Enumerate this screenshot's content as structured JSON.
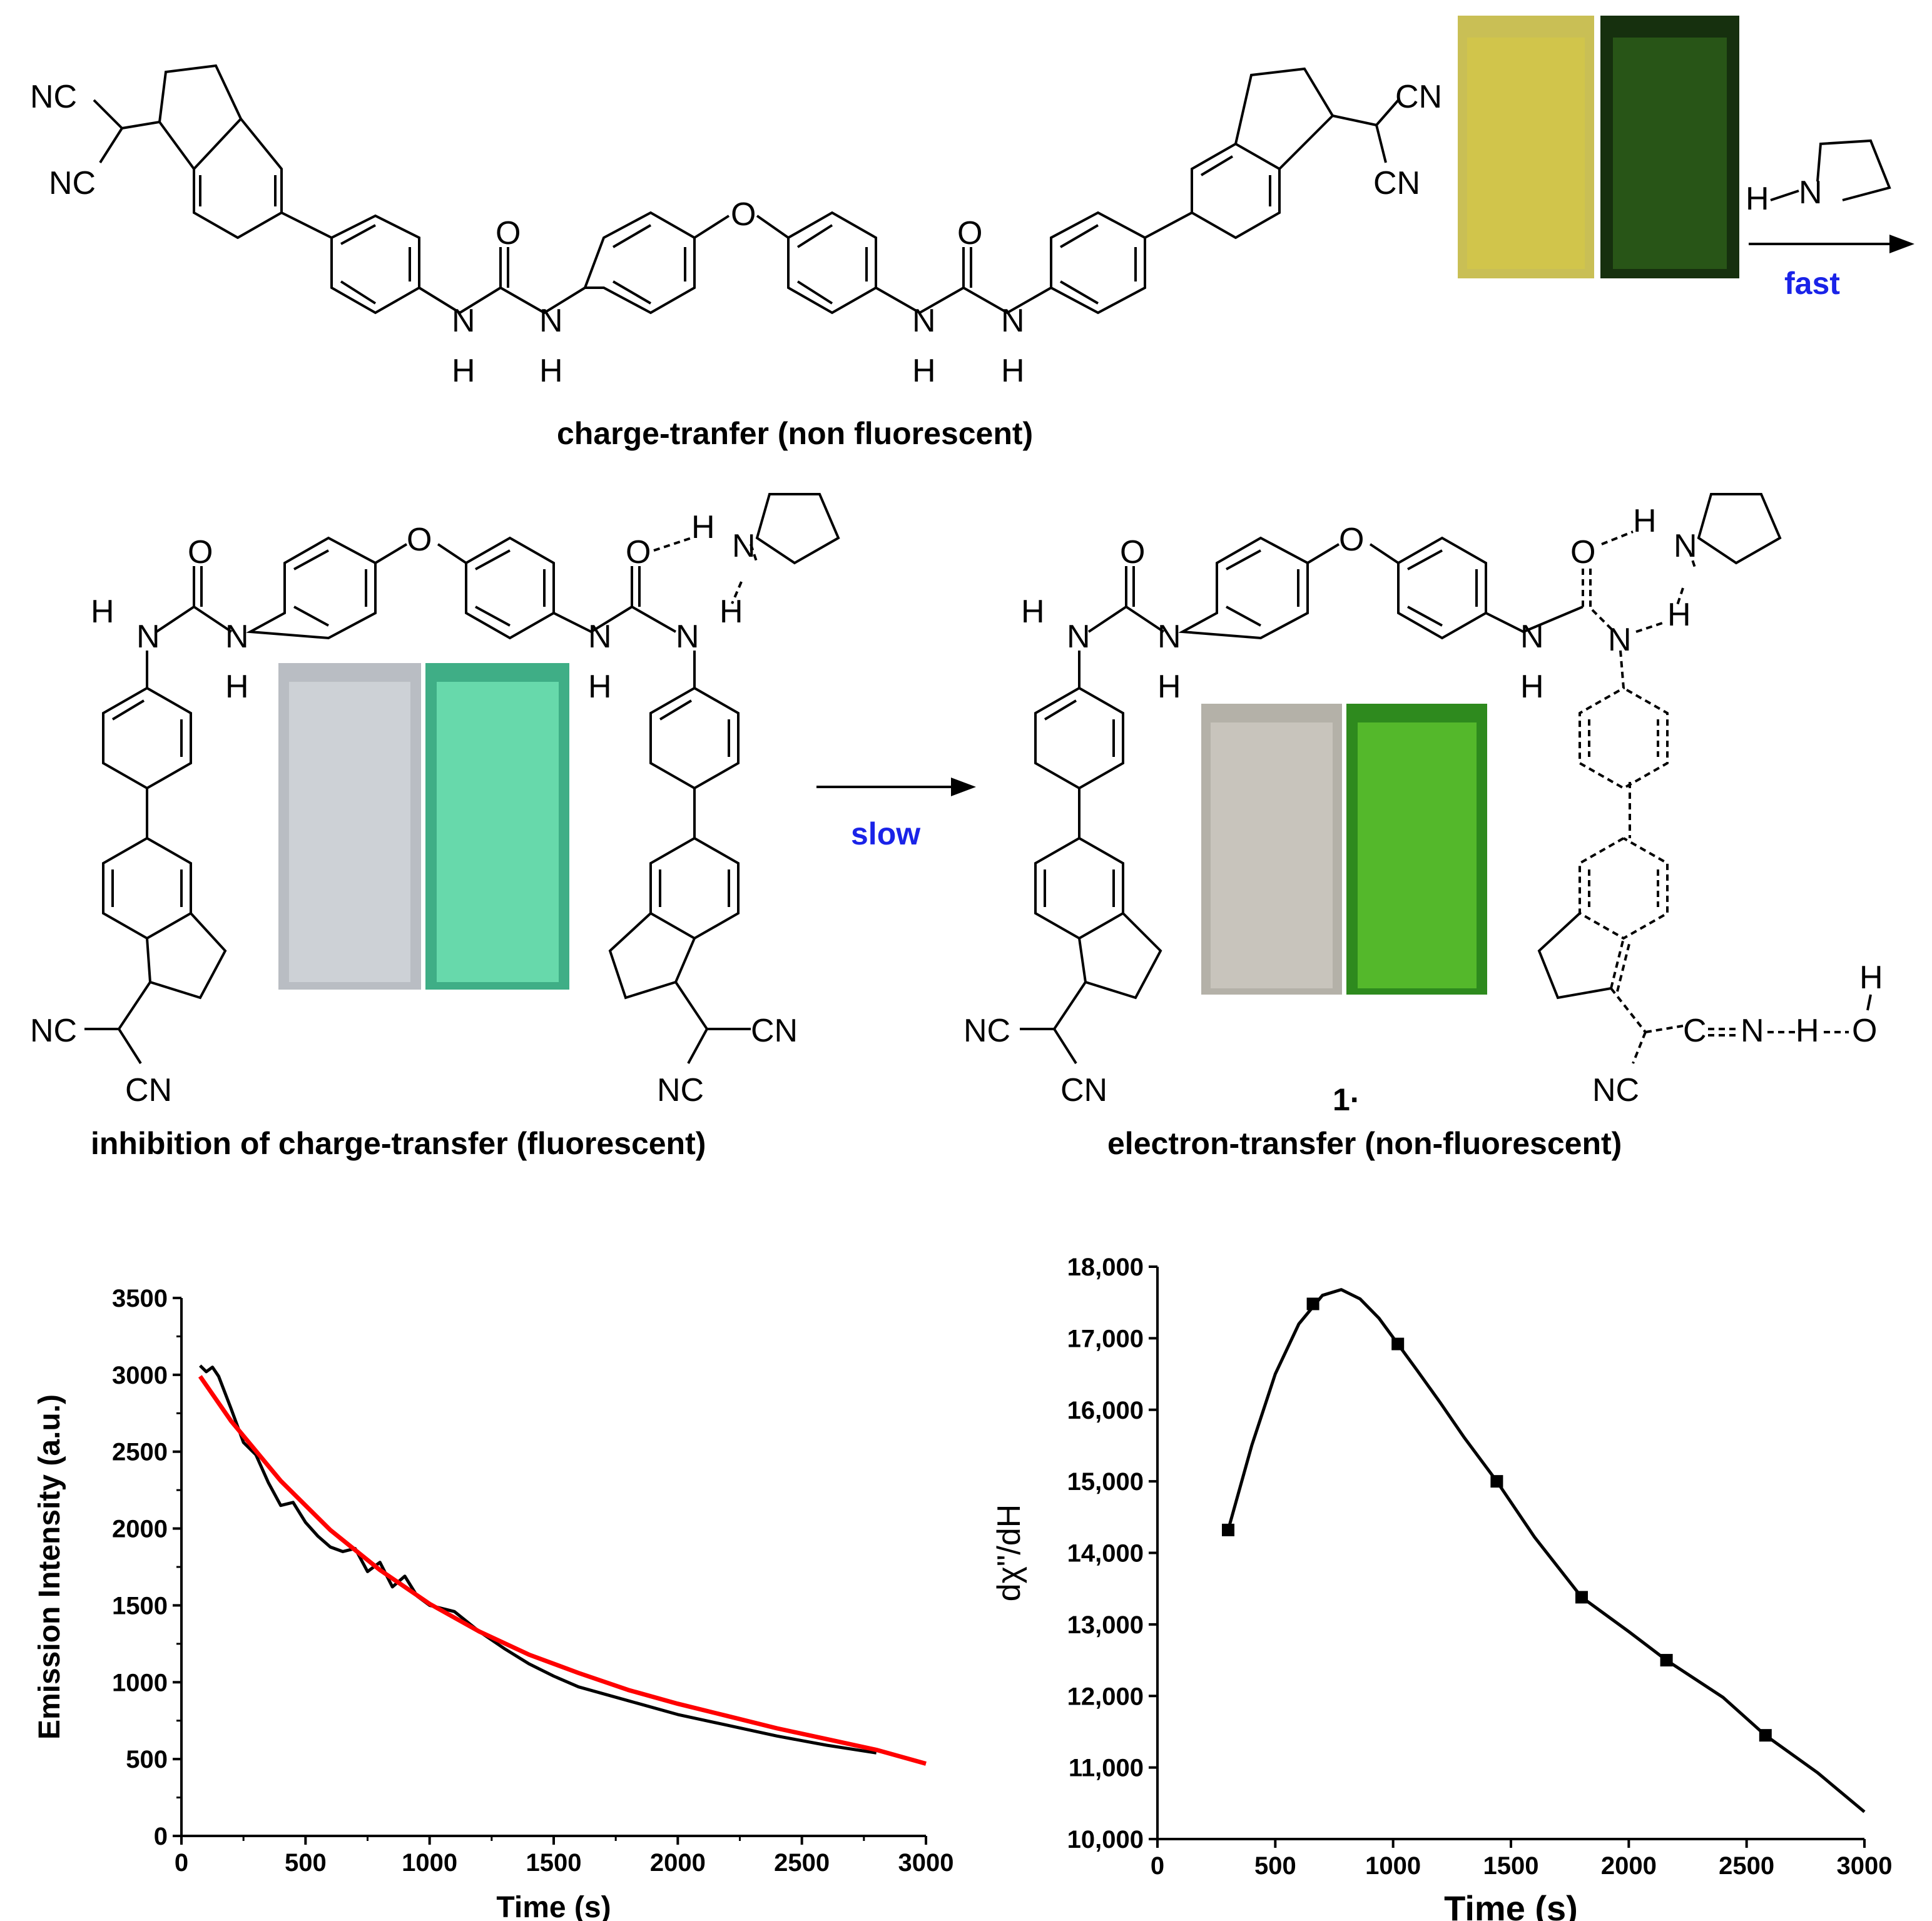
{
  "schemes": {
    "top_caption": "charge-tranfer (non fluorescent)",
    "middle_left_caption": "inhibition of charge-transfer (fluorescent)",
    "middle_right_caption": "electron-transfer (non-fluorescent)",
    "compound_label": "1·",
    "arrow_fast": "fast",
    "arrow_slow": "slow",
    "atoms": {
      "nc": "NC",
      "cn": "CN",
      "n": "N",
      "h": "H",
      "o": "O",
      "c": "C"
    },
    "colors": {
      "arrow_text": "#1a23e8"
    }
  },
  "chart_data": [
    {
      "type": "line",
      "title": "",
      "xlabel": "Time (s)",
      "ylabel": "Emission Intensity (a.u.)",
      "xlim": [
        0,
        3000
      ],
      "ylim": [
        0,
        3500
      ],
      "xticks": [
        0,
        500,
        1000,
        1500,
        2000,
        2500,
        3000
      ],
      "yticks": [
        0,
        500,
        1000,
        1500,
        2000,
        2500,
        3000,
        3500
      ],
      "series": [
        {
          "name": "data",
          "color": "#000000",
          "x": [
            75,
            100,
            125,
            150,
            200,
            250,
            300,
            350,
            400,
            450,
            500,
            550,
            600,
            650,
            700,
            750,
            800,
            850,
            900,
            950,
            1000,
            1100,
            1200,
            1300,
            1400,
            1500,
            1600,
            1800,
            2000,
            2200,
            2400,
            2600,
            2800
          ],
          "y": [
            3060,
            3020,
            3050,
            2990,
            2780,
            2560,
            2480,
            2300,
            2150,
            2170,
            2040,
            1950,
            1880,
            1850,
            1870,
            1720,
            1780,
            1620,
            1690,
            1560,
            1500,
            1460,
            1330,
            1220,
            1120,
            1040,
            970,
            880,
            790,
            720,
            650,
            590,
            540
          ]
        },
        {
          "name": "fit",
          "color": "#ff0000",
          "x": [
            75,
            200,
            400,
            600,
            800,
            1000,
            1200,
            1400,
            1600,
            1800,
            2000,
            2200,
            2400,
            2600,
            2800,
            3000
          ],
          "y": [
            2990,
            2700,
            2310,
            1990,
            1730,
            1510,
            1330,
            1180,
            1060,
            950,
            860,
            780,
            700,
            630,
            560,
            470
          ]
        }
      ]
    },
    {
      "type": "line",
      "title": "",
      "xlabel": "Time (s)",
      "ylabel": "dχ\"/dH",
      "xlim": [
        0,
        3000
      ],
      "ylim": [
        10000,
        18000
      ],
      "xticks": [
        0,
        500,
        1000,
        1500,
        2000,
        2500,
        3000
      ],
      "yticks": [
        10000,
        11000,
        12000,
        13000,
        14000,
        15000,
        16000,
        17000,
        18000
      ],
      "ytick_labels": [
        "10,000",
        "11,000",
        "12,000",
        "13,000",
        "14,000",
        "15,000",
        "16,000",
        "17,000",
        "18,000"
      ],
      "series": [
        {
          "name": "points",
          "color": "#000000",
          "x": [
            300,
            660,
            1020,
            1440,
            1800,
            2160,
            2580
          ],
          "y": [
            14320,
            17480,
            16920,
            15000,
            13380,
            12500,
            11450
          ]
        },
        {
          "name": "curve",
          "color": "#000000",
          "x": [
            300,
            400,
            500,
            600,
            700,
            780,
            860,
            940,
            1020,
            1100,
            1200,
            1300,
            1440,
            1600,
            1800,
            2000,
            2160,
            2400,
            2580,
            2800,
            3000
          ],
          "y": [
            14320,
            15500,
            16500,
            17200,
            17600,
            17680,
            17550,
            17280,
            16920,
            16560,
            16100,
            15620,
            15000,
            14220,
            13380,
            12900,
            12500,
            11980,
            11450,
            10930,
            10380
          ]
        }
      ]
    }
  ]
}
